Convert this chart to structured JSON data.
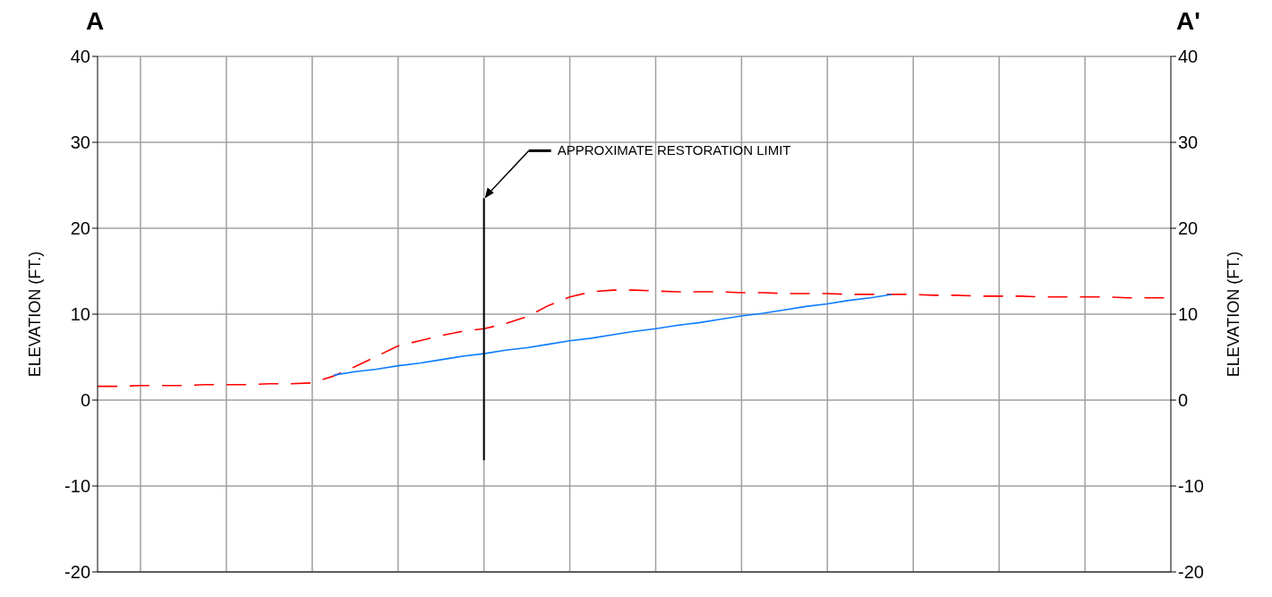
{
  "chart_data": {
    "type": "line",
    "ylabel": "ELEVATION (FT.)",
    "y2label": "ELEVATION (FT.)",
    "annotations": [
      "A",
      "A'",
      "APPROXIMATE RESTORATION LIMIT"
    ],
    "categories": [
      null,
      null,
      null,
      null,
      null,
      null,
      null,
      null,
      null,
      null,
      null,
      null,
      null,
      null,
      null,
      null,
      null,
      null,
      null,
      null,
      null,
      null,
      null,
      null,
      null,
      null,
      null,
      null,
      null,
      null,
      null,
      null,
      null,
      null,
      null,
      null,
      null,
      null,
      null,
      null,
      null,
      null,
      null,
      null,
      null,
      null,
      null,
      null,
      null,
      null,
      null
    ],
    "ylim": [
      -20,
      40
    ],
    "yticks": [
      -20,
      -10,
      0,
      10,
      20,
      30,
      40
    ],
    "y2lim": [
      -20,
      40
    ],
    "y2ticks": [
      -20,
      -10,
      0,
      10,
      20,
      30,
      40
    ],
    "tick_labels": "y",
    "grid": true,
    "marker": "none",
    "series": [
      {
        "color": "#ff0000",
        "line_style": "dashed",
        "values": [
          1.6,
          1.6,
          1.7,
          1.7,
          1.7,
          1.8,
          1.8,
          1.8,
          1.9,
          1.9,
          2.0,
          2.8,
          3.9,
          5.1,
          6.3,
          6.9,
          7.5,
          8.0,
          8.3,
          8.9,
          9.7,
          11.0,
          12.0,
          12.6,
          12.8,
          12.8,
          12.7,
          12.6,
          12.6,
          12.6,
          12.5,
          12.5,
          12.4,
          12.4,
          12.4,
          12.3,
          12.3,
          12.3,
          12.3,
          12.2,
          12.2,
          12.1,
          12.1,
          12.1,
          12.0,
          12.0,
          12.0,
          12.0,
          11.9,
          11.9,
          11.9
        ]
      },
      {
        "color": "#0a7cff",
        "line_style": "solid",
        "values": [
          null,
          null,
          null,
          null,
          null,
          null,
          null,
          null,
          null,
          null,
          null,
          2.9,
          3.3,
          3.6,
          4.0,
          4.3,
          4.7,
          5.1,
          5.4,
          5.8,
          6.1,
          6.5,
          6.9,
          7.2,
          7.6,
          8.0,
          8.3,
          8.7,
          9.0,
          9.4,
          9.8,
          10.1,
          10.5,
          10.9,
          11.2,
          11.6,
          11.9,
          12.3,
          null,
          null,
          null,
          null,
          null,
          null,
          null,
          null,
          null,
          null,
          null,
          null,
          null
        ]
      }
    ]
  }
}
